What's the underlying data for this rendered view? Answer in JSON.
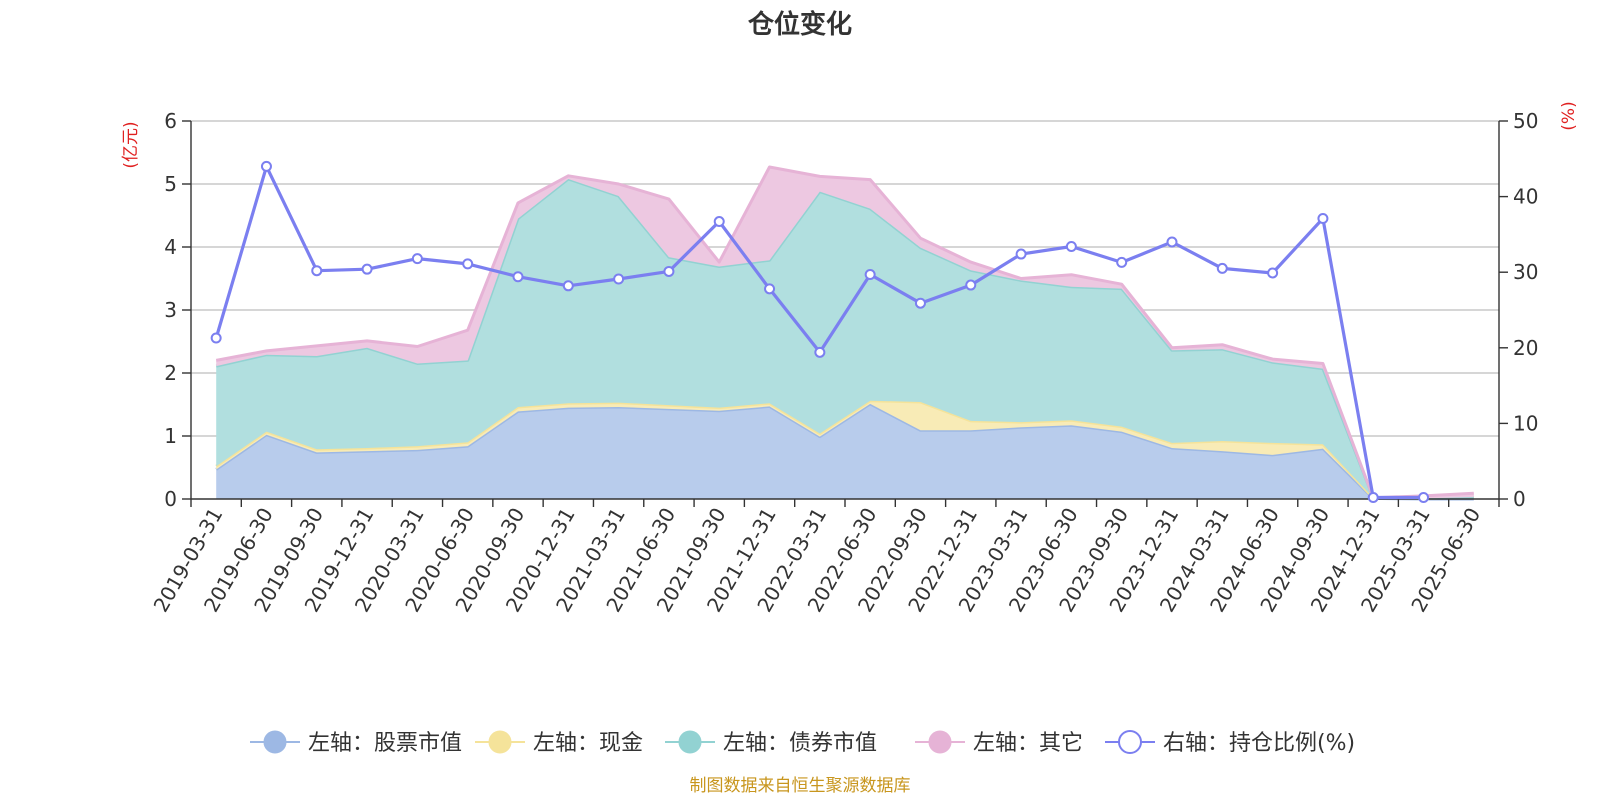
{
  "chart_data": {
    "type": "area",
    "title": "仓位变化",
    "left_unit": "(亿元)",
    "right_unit": "(%)",
    "source": "制图数据来自恒生聚源数据库",
    "categories": [
      "2019-03-31",
      "2019-06-30",
      "2019-09-30",
      "2019-12-31",
      "2020-03-31",
      "2020-06-30",
      "2020-09-30",
      "2020-12-31",
      "2021-03-31",
      "2021-06-30",
      "2021-09-30",
      "2021-12-31",
      "2022-03-31",
      "2022-06-30",
      "2022-09-30",
      "2022-12-31",
      "2023-03-31",
      "2023-06-30",
      "2023-09-30",
      "2023-12-31",
      "2024-03-31",
      "2024-06-30",
      "2024-09-30",
      "2024-12-31",
      "2025-03-31",
      "2025-06-30"
    ],
    "y_left": {
      "min": 0,
      "max": 6,
      "ticks": [
        0,
        1,
        2,
        3,
        4,
        5,
        6
      ]
    },
    "y_right": {
      "min": 0,
      "max": 50,
      "ticks": [
        0,
        10,
        20,
        30,
        40,
        50
      ]
    },
    "stacked": true,
    "series": [
      {
        "name": "左轴：股票市值",
        "axis": "left",
        "type": "area",
        "color": "#9db8e4",
        "values": [
          0.47,
          1.02,
          0.74,
          0.76,
          0.78,
          0.84,
          1.39,
          1.45,
          1.46,
          1.43,
          1.4,
          1.47,
          0.99,
          1.51,
          1.09,
          1.09,
          1.14,
          1.17,
          1.07,
          0.81,
          0.76,
          0.7,
          0.8,
          0.01,
          0.0,
          0.0
        ]
      },
      {
        "name": "左轴：现金",
        "axis": "left",
        "type": "area",
        "color": "#f5e39a",
        "values": [
          0.05,
          0.05,
          0.05,
          0.05,
          0.06,
          0.06,
          0.07,
          0.07,
          0.07,
          0.06,
          0.05,
          0.05,
          0.05,
          0.05,
          0.45,
          0.15,
          0.08,
          0.08,
          0.08,
          0.08,
          0.16,
          0.19,
          0.07,
          0.01,
          0.01,
          0.03
        ]
      },
      {
        "name": "左轴：债券市值",
        "axis": "left",
        "type": "area",
        "color": "#92d2d2",
        "values": [
          1.59,
          1.22,
          1.48,
          1.59,
          1.31,
          1.3,
          2.99,
          3.56,
          3.28,
          2.35,
          2.24,
          2.27,
          3.84,
          3.05,
          2.45,
          2.39,
          2.25,
          2.12,
          2.19,
          1.47,
          1.46,
          1.28,
          1.2,
          0.0,
          0.0,
          0.0
        ]
      },
      {
        "name": "左轴：其它",
        "axis": "left",
        "type": "area",
        "color": "#e6b3d6",
        "values": [
          0.09,
          0.06,
          0.16,
          0.11,
          0.27,
          0.48,
          0.25,
          0.05,
          0.19,
          0.92,
          0.07,
          1.48,
          0.24,
          0.46,
          0.15,
          0.13,
          0.03,
          0.19,
          0.07,
          0.04,
          0.07,
          0.05,
          0.08,
          0.0,
          0.04,
          0.06
        ]
      },
      {
        "name": "右轴：持仓比例(%)",
        "axis": "right",
        "type": "line",
        "color": "#7b7ff0",
        "values": [
          21.3,
          44.0,
          30.2,
          30.4,
          31.8,
          31.1,
          29.4,
          28.2,
          29.1,
          30.1,
          36.7,
          27.8,
          19.4,
          29.7,
          25.9,
          28.3,
          32.4,
          33.4,
          31.3,
          34.0,
          30.5,
          29.9,
          37.1,
          0.2,
          0.2,
          null
        ]
      }
    ]
  }
}
